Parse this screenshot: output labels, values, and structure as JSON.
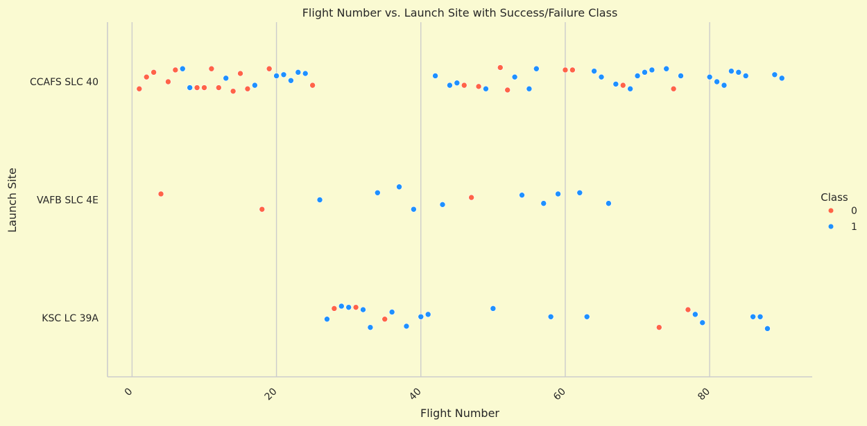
{
  "chart_data": {
    "type": "scatter",
    "title": "Flight Number vs. Launch Site with Success/Failure Class",
    "xlabel": "Flight Number",
    "ylabel": "Launch Site",
    "xlim": [
      -3.4,
      94.2
    ],
    "x_ticks": [
      0,
      20,
      40,
      60,
      80
    ],
    "categories": [
      "CCAFS SLC 40",
      "VAFB SLC 4E",
      "KSC LC 39A"
    ],
    "grid": "vertical",
    "legend": {
      "title": "Class",
      "placement": "right",
      "entries": [
        "0",
        "1"
      ]
    },
    "colors": {
      "0": "#ff6347",
      "1": "#1e90ff"
    },
    "points": [
      {
        "x": 1,
        "site": "CCAFS SLC 40",
        "jitter": -0.06,
        "class": 0
      },
      {
        "x": 2,
        "site": "CCAFS SLC 40",
        "jitter": 0.04,
        "class": 0
      },
      {
        "x": 3,
        "site": "CCAFS SLC 40",
        "jitter": 0.08,
        "class": 0
      },
      {
        "x": 5,
        "site": "CCAFS SLC 40",
        "jitter": 0.0,
        "class": 0
      },
      {
        "x": 6,
        "site": "CCAFS SLC 40",
        "jitter": 0.1,
        "class": 0
      },
      {
        "x": 7,
        "site": "CCAFS SLC 40",
        "jitter": 0.11,
        "class": 1
      },
      {
        "x": 8,
        "site": "CCAFS SLC 40",
        "jitter": -0.05,
        "class": 1
      },
      {
        "x": 9,
        "site": "CCAFS SLC 40",
        "jitter": -0.05,
        "class": 0
      },
      {
        "x": 10,
        "site": "CCAFS SLC 40",
        "jitter": -0.05,
        "class": 0
      },
      {
        "x": 11,
        "site": "CCAFS SLC 40",
        "jitter": 0.11,
        "class": 0
      },
      {
        "x": 12,
        "site": "CCAFS SLC 40",
        "jitter": -0.05,
        "class": 0
      },
      {
        "x": 13,
        "site": "CCAFS SLC 40",
        "jitter": 0.03,
        "class": 1
      },
      {
        "x": 14,
        "site": "CCAFS SLC 40",
        "jitter": -0.08,
        "class": 0
      },
      {
        "x": 15,
        "site": "CCAFS SLC 40",
        "jitter": 0.07,
        "class": 0
      },
      {
        "x": 16,
        "site": "CCAFS SLC 40",
        "jitter": -0.06,
        "class": 0
      },
      {
        "x": 17,
        "site": "CCAFS SLC 40",
        "jitter": -0.03,
        "class": 1
      },
      {
        "x": 19,
        "site": "CCAFS SLC 40",
        "jitter": 0.11,
        "class": 0
      },
      {
        "x": 20,
        "site": "CCAFS SLC 40",
        "jitter": 0.05,
        "class": 1
      },
      {
        "x": 21,
        "site": "CCAFS SLC 40",
        "jitter": 0.06,
        "class": 1
      },
      {
        "x": 22,
        "site": "CCAFS SLC 40",
        "jitter": 0.01,
        "class": 1
      },
      {
        "x": 23,
        "site": "CCAFS SLC 40",
        "jitter": 0.08,
        "class": 1
      },
      {
        "x": 24,
        "site": "CCAFS SLC 40",
        "jitter": 0.07,
        "class": 1
      },
      {
        "x": 25,
        "site": "CCAFS SLC 40",
        "jitter": -0.03,
        "class": 0
      },
      {
        "x": 42,
        "site": "CCAFS SLC 40",
        "jitter": 0.05,
        "class": 1
      },
      {
        "x": 44,
        "site": "CCAFS SLC 40",
        "jitter": -0.03,
        "class": 1
      },
      {
        "x": 45,
        "site": "CCAFS SLC 40",
        "jitter": -0.01,
        "class": 1
      },
      {
        "x": 46,
        "site": "CCAFS SLC 40",
        "jitter": -0.03,
        "class": 0
      },
      {
        "x": 48,
        "site": "CCAFS SLC 40",
        "jitter": -0.04,
        "class": 0
      },
      {
        "x": 49,
        "site": "CCAFS SLC 40",
        "jitter": -0.06,
        "class": 1
      },
      {
        "x": 51,
        "site": "CCAFS SLC 40",
        "jitter": 0.12,
        "class": 0
      },
      {
        "x": 52,
        "site": "CCAFS SLC 40",
        "jitter": -0.07,
        "class": 0
      },
      {
        "x": 53,
        "site": "CCAFS SLC 40",
        "jitter": 0.04,
        "class": 1
      },
      {
        "x": 55,
        "site": "CCAFS SLC 40",
        "jitter": -0.06,
        "class": 1
      },
      {
        "x": 56,
        "site": "CCAFS SLC 40",
        "jitter": 0.11,
        "class": 1
      },
      {
        "x": 60,
        "site": "CCAFS SLC 40",
        "jitter": 0.1,
        "class": 0
      },
      {
        "x": 61,
        "site": "CCAFS SLC 40",
        "jitter": 0.1,
        "class": 0
      },
      {
        "x": 64,
        "site": "CCAFS SLC 40",
        "jitter": 0.09,
        "class": 1
      },
      {
        "x": 65,
        "site": "CCAFS SLC 40",
        "jitter": 0.04,
        "class": 1
      },
      {
        "x": 67,
        "site": "CCAFS SLC 40",
        "jitter": -0.02,
        "class": 1
      },
      {
        "x": 68,
        "site": "CCAFS SLC 40",
        "jitter": -0.03,
        "class": 0
      },
      {
        "x": 69,
        "site": "CCAFS SLC 40",
        "jitter": -0.06,
        "class": 1
      },
      {
        "x": 70,
        "site": "CCAFS SLC 40",
        "jitter": 0.05,
        "class": 1
      },
      {
        "x": 71,
        "site": "CCAFS SLC 40",
        "jitter": 0.08,
        "class": 1
      },
      {
        "x": 72,
        "site": "CCAFS SLC 40",
        "jitter": 0.1,
        "class": 1
      },
      {
        "x": 74,
        "site": "CCAFS SLC 40",
        "jitter": 0.11,
        "class": 1
      },
      {
        "x": 75,
        "site": "CCAFS SLC 40",
        "jitter": -0.06,
        "class": 0
      },
      {
        "x": 76,
        "site": "CCAFS SLC 40",
        "jitter": 0.05,
        "class": 1
      },
      {
        "x": 80,
        "site": "CCAFS SLC 40",
        "jitter": 0.04,
        "class": 1
      },
      {
        "x": 81,
        "site": "CCAFS SLC 40",
        "jitter": 0.0,
        "class": 1
      },
      {
        "x": 82,
        "site": "CCAFS SLC 40",
        "jitter": -0.03,
        "class": 1
      },
      {
        "x": 83,
        "site": "CCAFS SLC 40",
        "jitter": 0.09,
        "class": 1
      },
      {
        "x": 84,
        "site": "CCAFS SLC 40",
        "jitter": 0.08,
        "class": 1
      },
      {
        "x": 85,
        "site": "CCAFS SLC 40",
        "jitter": 0.05,
        "class": 1
      },
      {
        "x": 89,
        "site": "CCAFS SLC 40",
        "jitter": 0.06,
        "class": 1
      },
      {
        "x": 90,
        "site": "CCAFS SLC 40",
        "jitter": 0.03,
        "class": 1
      },
      {
        "x": 4,
        "site": "VAFB SLC 4E",
        "jitter": 0.05,
        "class": 0
      },
      {
        "x": 18,
        "site": "VAFB SLC 4E",
        "jitter": -0.08,
        "class": 0
      },
      {
        "x": 26,
        "site": "VAFB SLC 4E",
        "jitter": 0.0,
        "class": 1
      },
      {
        "x": 34,
        "site": "VAFB SLC 4E",
        "jitter": 0.06,
        "class": 1
      },
      {
        "x": 37,
        "site": "VAFB SLC 4E",
        "jitter": 0.11,
        "class": 1
      },
      {
        "x": 39,
        "site": "VAFB SLC 4E",
        "jitter": -0.08,
        "class": 1
      },
      {
        "x": 43,
        "site": "VAFB SLC 4E",
        "jitter": -0.04,
        "class": 1
      },
      {
        "x": 47,
        "site": "VAFB SLC 4E",
        "jitter": 0.02,
        "class": 0
      },
      {
        "x": 54,
        "site": "VAFB SLC 4E",
        "jitter": 0.04,
        "class": 1
      },
      {
        "x": 57,
        "site": "VAFB SLC 4E",
        "jitter": -0.03,
        "class": 1
      },
      {
        "x": 59,
        "site": "VAFB SLC 4E",
        "jitter": 0.05,
        "class": 1
      },
      {
        "x": 62,
        "site": "VAFB SLC 4E",
        "jitter": 0.06,
        "class": 1
      },
      {
        "x": 66,
        "site": "VAFB SLC 4E",
        "jitter": -0.03,
        "class": 1
      },
      {
        "x": 27,
        "site": "KSC LC 39A",
        "jitter": -0.01,
        "class": 1
      },
      {
        "x": 28,
        "site": "KSC LC 39A",
        "jitter": 0.08,
        "class": 0
      },
      {
        "x": 29,
        "site": "KSC LC 39A",
        "jitter": 0.1,
        "class": 1
      },
      {
        "x": 30,
        "site": "KSC LC 39A",
        "jitter": 0.09,
        "class": 1
      },
      {
        "x": 31,
        "site": "KSC LC 39A",
        "jitter": 0.09,
        "class": 0
      },
      {
        "x": 32,
        "site": "KSC LC 39A",
        "jitter": 0.07,
        "class": 1
      },
      {
        "x": 33,
        "site": "KSC LC 39A",
        "jitter": -0.08,
        "class": 1
      },
      {
        "x": 35,
        "site": "KSC LC 39A",
        "jitter": -0.01,
        "class": 0
      },
      {
        "x": 36,
        "site": "KSC LC 39A",
        "jitter": 0.05,
        "class": 1
      },
      {
        "x": 38,
        "site": "KSC LC 39A",
        "jitter": -0.07,
        "class": 1
      },
      {
        "x": 40,
        "site": "KSC LC 39A",
        "jitter": 0.01,
        "class": 1
      },
      {
        "x": 41,
        "site": "KSC LC 39A",
        "jitter": 0.03,
        "class": 1
      },
      {
        "x": 50,
        "site": "KSC LC 39A",
        "jitter": 0.08,
        "class": 1
      },
      {
        "x": 58,
        "site": "KSC LC 39A",
        "jitter": 0.01,
        "class": 1
      },
      {
        "x": 63,
        "site": "KSC LC 39A",
        "jitter": 0.01,
        "class": 1
      },
      {
        "x": 73,
        "site": "KSC LC 39A",
        "jitter": -0.08,
        "class": 0
      },
      {
        "x": 77,
        "site": "KSC LC 39A",
        "jitter": 0.07,
        "class": 0
      },
      {
        "x": 78,
        "site": "KSC LC 39A",
        "jitter": 0.03,
        "class": 1
      },
      {
        "x": 79,
        "site": "KSC LC 39A",
        "jitter": -0.04,
        "class": 1
      },
      {
        "x": 86,
        "site": "KSC LC 39A",
        "jitter": 0.01,
        "class": 1
      },
      {
        "x": 87,
        "site": "KSC LC 39A",
        "jitter": 0.01,
        "class": 1
      },
      {
        "x": 88,
        "site": "KSC LC 39A",
        "jitter": -0.09,
        "class": 1
      }
    ]
  }
}
